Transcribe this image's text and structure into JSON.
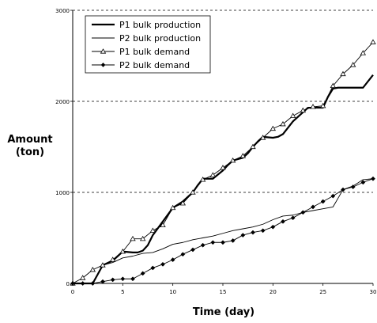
{
  "chart_data": {
    "type": "line",
    "xlabel": "Time (day)",
    "ylabel_line1": "Amount",
    "ylabel_line2": "(ton)",
    "xlim": [
      0,
      30
    ],
    "ylim": [
      0,
      3000
    ],
    "x_ticks": [
      0,
      5,
      10,
      15,
      20,
      25,
      30
    ],
    "y_ticks": [
      0,
      1000,
      2000,
      3000
    ],
    "x_tick_labels": [
      "0",
      "5",
      "10",
      "15",
      "20",
      "25",
      "30"
    ],
    "y_tick_labels": [
      "0",
      "1000",
      "2000",
      "3000"
    ],
    "grid": "horizontal-dashed",
    "legend_position": "top-left",
    "series": [
      {
        "name": "P1 bulk production",
        "style": "thick",
        "marker": "none",
        "color": "#000000",
        "x": [
          0,
          2,
          2.5,
          3,
          4,
          4.5,
          5,
          6,
          6.5,
          7,
          7.5,
          8,
          9,
          10,
          11,
          12,
          12.5,
          13,
          13.5,
          14,
          15,
          15.5,
          16,
          17,
          17.5,
          18,
          18.5,
          19,
          20,
          20.5,
          21,
          22,
          22.5,
          23,
          23.5,
          24,
          25,
          25.5,
          26,
          26.5,
          27,
          28,
          29,
          30
        ],
        "values": [
          0,
          0,
          100,
          200,
          250,
          300,
          350,
          340,
          340,
          360,
          420,
          530,
          680,
          830,
          900,
          1000,
          1080,
          1150,
          1150,
          1150,
          1240,
          1300,
          1350,
          1380,
          1430,
          1500,
          1560,
          1610,
          1600,
          1610,
          1640,
          1780,
          1830,
          1880,
          1930,
          1930,
          1930,
          2050,
          2140,
          2150,
          2150,
          2150,
          2150,
          2290
        ]
      },
      {
        "name": "P2 bulk production",
        "style": "thin",
        "marker": "none",
        "color": "#000000",
        "x": [
          0,
          2,
          3,
          4,
          5,
          6,
          7,
          8,
          9,
          10,
          11,
          12,
          13,
          14,
          15,
          16,
          17,
          18,
          19,
          20,
          21,
          22,
          23,
          24,
          25,
          26,
          27,
          28,
          29,
          30
        ],
        "values": [
          0,
          0,
          200,
          230,
          280,
          300,
          330,
          340,
          380,
          430,
          450,
          480,
          500,
          520,
          550,
          580,
          600,
          620,
          650,
          700,
          740,
          750,
          780,
          800,
          820,
          840,
          1030,
          1070,
          1140,
          1150
        ]
      },
      {
        "name": "P1 bulk demand",
        "style": "thin",
        "marker": "triangle",
        "color": "#000000",
        "x": [
          0,
          1,
          2,
          3,
          4,
          5,
          6,
          7,
          8,
          9,
          10,
          11,
          12,
          13,
          14,
          15,
          16,
          17,
          18,
          19,
          20,
          21,
          22,
          23,
          24,
          25,
          26,
          27,
          28,
          29,
          30
        ],
        "values": [
          0,
          60,
          150,
          200,
          260,
          350,
          490,
          490,
          580,
          640,
          830,
          880,
          1000,
          1140,
          1190,
          1270,
          1350,
          1400,
          1500,
          1600,
          1700,
          1750,
          1840,
          1900,
          1940,
          1950,
          2170,
          2300,
          2400,
          2530,
          2650
        ]
      },
      {
        "name": "P2 bulk demand",
        "style": "thin",
        "marker": "diamond",
        "color": "#000000",
        "x": [
          0,
          1,
          2,
          3,
          4,
          5,
          6,
          7,
          8,
          9,
          10,
          11,
          12,
          13,
          14,
          15,
          16,
          17,
          18,
          19,
          20,
          21,
          22,
          23,
          24,
          25,
          26,
          27,
          28,
          29,
          30
        ],
        "values": [
          0,
          0,
          0,
          20,
          40,
          50,
          50,
          110,
          170,
          210,
          260,
          320,
          370,
          420,
          450,
          450,
          470,
          530,
          560,
          580,
          620,
          680,
          720,
          780,
          840,
          900,
          960,
          1030,
          1060,
          1110,
          1150
        ]
      }
    ]
  }
}
